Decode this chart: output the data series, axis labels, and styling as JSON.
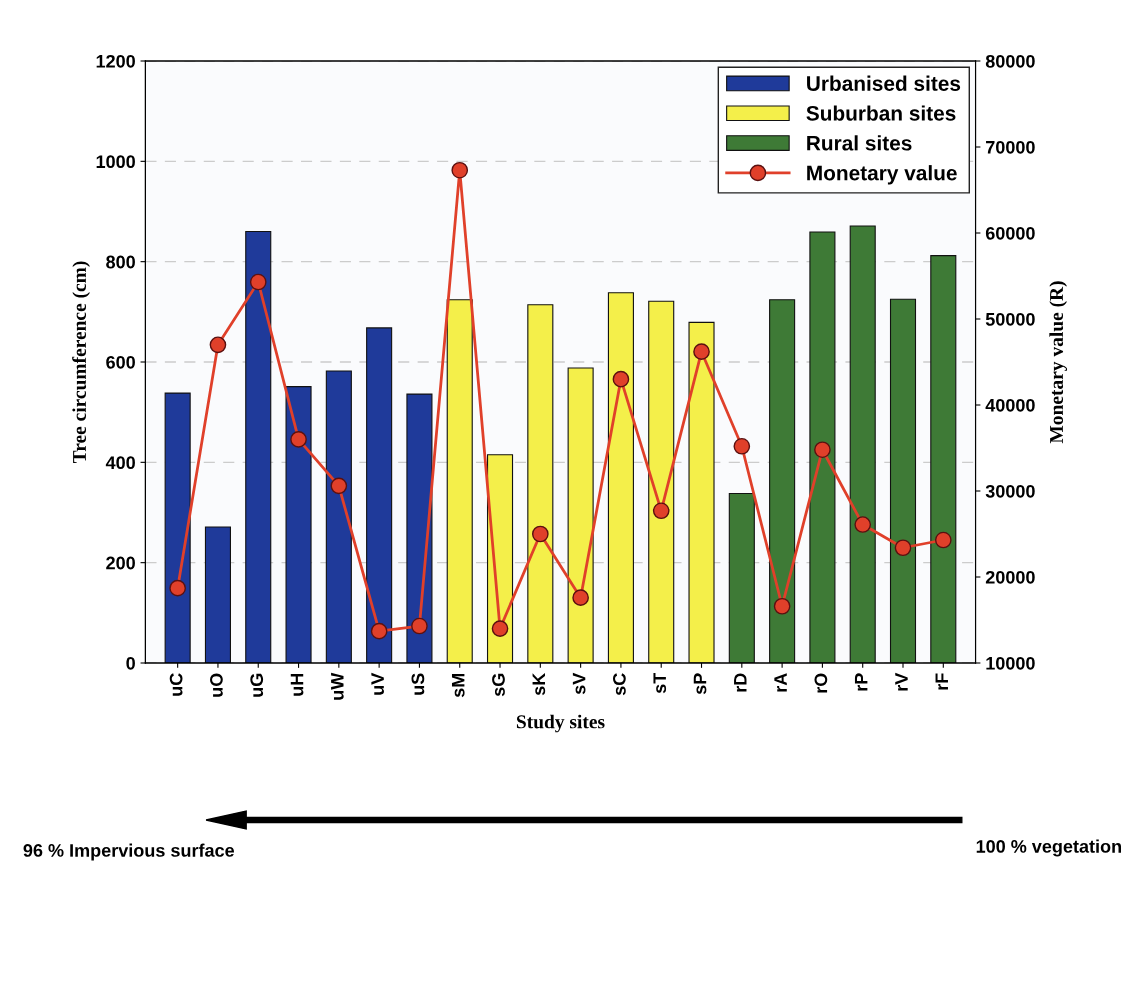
{
  "chart_data": {
    "type": "bar",
    "xlabel": "Study sites",
    "ylabel": "Tree circumference (cm)",
    "y2label": "Monetary value (R)",
    "categories": [
      "uC",
      "uO",
      "uG",
      "uH",
      "uW",
      "uV",
      "uS",
      "sM",
      "sG",
      "sK",
      "sV",
      "sC",
      "sT",
      "sP",
      "rD",
      "rA",
      "rO",
      "rP",
      "rV",
      "rF"
    ],
    "series": [
      {
        "name": "Urbanised sites",
        "color": "#1f3a9a",
        "values": [
          538,
          271,
          860,
          551,
          582,
          668,
          536,
          null,
          null,
          null,
          null,
          null,
          null,
          null,
          null,
          null,
          null,
          null,
          null,
          null
        ]
      },
      {
        "name": "Suburban sites",
        "color": "#f4ef4a",
        "values": [
          null,
          null,
          null,
          null,
          null,
          null,
          null,
          724,
          415,
          714,
          588,
          738,
          721,
          679,
          null,
          null,
          null,
          null,
          null,
          null
        ]
      },
      {
        "name": "Rural sites",
        "color": "#3e7a36",
        "values": [
          null,
          null,
          null,
          null,
          null,
          null,
          null,
          null,
          null,
          null,
          null,
          null,
          null,
          null,
          338,
          724,
          859,
          871,
          725,
          812
        ]
      },
      {
        "name": "Monetary value",
        "type": "line",
        "axis": "y2",
        "color": "#e0402a",
        "marker": "circle",
        "line_style": "solid",
        "values": [
          18700,
          47000,
          54300,
          36000,
          30600,
          13700,
          14300,
          67300,
          14000,
          25000,
          17600,
          43000,
          27700,
          46200,
          35200,
          16600,
          34800,
          26100,
          23400,
          24300
        ]
      }
    ],
    "ylim": [
      0,
      1200
    ],
    "yticks": [
      0,
      200,
      400,
      600,
      800,
      1000,
      1200
    ],
    "y2lim": [
      10000,
      80000
    ],
    "y2ticks": [
      10000,
      20000,
      30000,
      40000,
      50000,
      60000,
      70000,
      80000
    ],
    "grid": "y",
    "legend": "top right",
    "annotations": [
      "96 % Impervious surface",
      "100 % vegetation"
    ]
  }
}
